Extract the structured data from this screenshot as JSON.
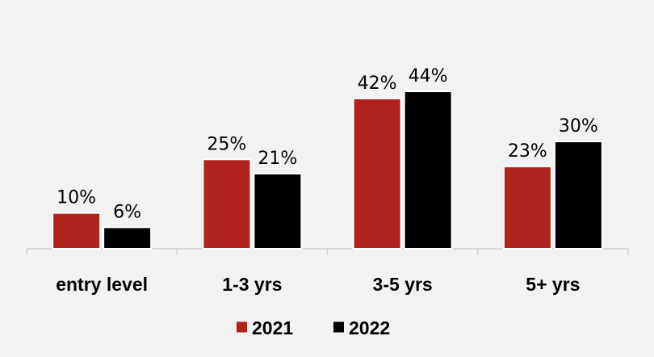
{
  "chart_data": {
    "type": "bar",
    "categories": [
      "entry level",
      "1-3 yrs",
      "3-5 yrs",
      "5+ yrs"
    ],
    "series": [
      {
        "name": "2021",
        "values": [
          10,
          25,
          42,
          23
        ],
        "labels": [
          "10%",
          "25%",
          "42%",
          "23%"
        ],
        "color": "#b0231c"
      },
      {
        "name": "2022",
        "values": [
          6,
          21,
          44,
          30
        ],
        "labels": [
          "6%",
          "21%",
          "44%",
          "30%"
        ],
        "color": "#000000"
      }
    ],
    "ylim": [
      0,
      50
    ],
    "grid": false,
    "legend": "bottom-center",
    "title": "",
    "xlabel": "",
    "ylabel": ""
  }
}
